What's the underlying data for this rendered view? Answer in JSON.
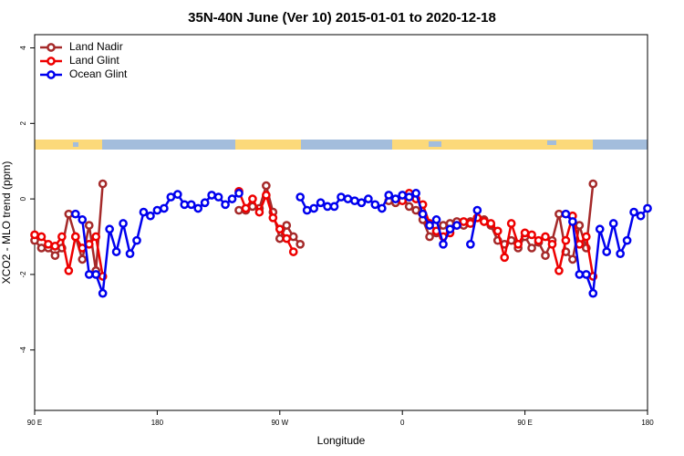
{
  "chart_data": {
    "type": "line",
    "title": "35N-40N June (Ver 10)   2015-01-01 to 2020-12-18",
    "x_label": "Longitude",
    "y_label": "XCO2 - MLO trend (ppm)",
    "xlim": [
      90,
      540
    ],
    "ylim": [
      -5.6,
      4.35
    ],
    "xticks": [
      {
        "value": 90,
        "label": "90 E"
      },
      {
        "value": 180,
        "label": "180"
      },
      {
        "value": 270,
        "label": "90 W"
      },
      {
        "value": 360,
        "label": "0"
      },
      {
        "value": 450,
        "label": "90 E"
      },
      {
        "value": 540,
        "label": "180"
      }
    ],
    "yticks": [
      -4,
      -2,
      0,
      2,
      4
    ],
    "legend": "topleft",
    "x": [
      90,
      95,
      100,
      105,
      110,
      115,
      120,
      125,
      130,
      135,
      140,
      145,
      150,
      155,
      160,
      165,
      170,
      175,
      180,
      185,
      190,
      195,
      200,
      205,
      210,
      215,
      220,
      225,
      230,
      235,
      240,
      245,
      250,
      255,
      260,
      265,
      270,
      275,
      280,
      285,
      290,
      295,
      300,
      305,
      310,
      315,
      320,
      325,
      330,
      335,
      340,
      345,
      350,
      355,
      360,
      365,
      370,
      375,
      380,
      385,
      390,
      395,
      400,
      405,
      410,
      415,
      420,
      425,
      430,
      435,
      440,
      445,
      450,
      455,
      460,
      465,
      470,
      475,
      480,
      485,
      490,
      495,
      500,
      505,
      510,
      515,
      520,
      525,
      530,
      535,
      540
    ],
    "series": [
      {
        "name": "Land Nadir",
        "color": "#a52a2a",
        "values": [
          -1.1,
          -1.3,
          -1.3,
          -1.5,
          -1.3,
          -0.4,
          -1.0,
          -1.6,
          -0.7,
          -1.9,
          0.4,
          null,
          null,
          null,
          null,
          null,
          null,
          null,
          null,
          null,
          null,
          null,
          null,
          null,
          null,
          null,
          null,
          null,
          null,
          null,
          -0.3,
          -0.3,
          -0.2,
          -0.25,
          0.35,
          -0.35,
          -1.05,
          -0.7,
          -1.0,
          -1.2,
          null,
          null,
          null,
          null,
          null,
          null,
          null,
          null,
          null,
          null,
          null,
          null,
          -0.05,
          -0.1,
          0.05,
          -0.2,
          -0.3,
          -0.55,
          -1.0,
          -0.9,
          -0.7,
          -0.65,
          -0.6,
          -0.7,
          -0.6,
          -0.5,
          -0.55,
          -0.7,
          -1.1,
          -1.2,
          -1.1,
          -1.3,
          -1.0,
          -1.3,
          -1.15,
          -1.5,
          -1.1,
          -0.4,
          -1.4,
          -1.6,
          -0.7,
          -1.3,
          0.4,
          null,
          null,
          null,
          null,
          null,
          null,
          null,
          null
        ]
      },
      {
        "name": "Land Glint",
        "color": "#ee0000",
        "values": [
          -0.95,
          -1.0,
          -1.2,
          -1.25,
          -1.0,
          -1.9,
          -1.0,
          -1.3,
          -1.2,
          -1.0,
          -2.05,
          null,
          null,
          null,
          null,
          null,
          null,
          null,
          null,
          null,
          null,
          null,
          null,
          null,
          null,
          null,
          null,
          null,
          null,
          null,
          0.2,
          -0.25,
          0.0,
          -0.35,
          0.1,
          -0.5,
          -0.8,
          -1.05,
          -1.4,
          null,
          null,
          null,
          null,
          null,
          null,
          null,
          null,
          null,
          null,
          null,
          null,
          null,
          null,
          null,
          -0.05,
          0.15,
          0.0,
          -0.15,
          -0.65,
          -0.85,
          -1.0,
          -0.9,
          -0.7,
          -0.6,
          -0.65,
          -0.5,
          -0.6,
          -0.65,
          -0.85,
          -1.55,
          -0.65,
          -1.2,
          -0.9,
          -0.95,
          -1.1,
          -1.0,
          -1.2,
          -1.9,
          -1.1,
          -0.45,
          -1.2,
          -1.0,
          -2.05,
          null,
          null,
          null,
          null,
          null,
          null,
          null,
          null
        ]
      },
      {
        "name": "Ocean Glint",
        "color": "#0000ee",
        "values": [
          null,
          null,
          null,
          null,
          null,
          null,
          -0.4,
          -0.55,
          -2.0,
          -2.0,
          -2.5,
          -0.8,
          -1.4,
          -0.65,
          -1.45,
          -1.1,
          -0.35,
          -0.45,
          -0.3,
          -0.25,
          0.05,
          0.12,
          -0.15,
          -0.15,
          -0.25,
          -0.1,
          0.1,
          0.05,
          -0.15,
          0.0,
          0.15,
          null,
          null,
          null,
          null,
          null,
          null,
          null,
          null,
          0.05,
          -0.3,
          -0.25,
          -0.1,
          -0.2,
          -0.2,
          0.05,
          0.0,
          -0.05,
          -0.1,
          0.0,
          -0.15,
          -0.25,
          0.1,
          0.0,
          0.1,
          0.05,
          0.15,
          -0.4,
          -0.7,
          -0.55,
          -1.2,
          -0.8,
          -0.7,
          null,
          -1.2,
          -0.3,
          null,
          null,
          null,
          null,
          null,
          null,
          null,
          null,
          null,
          null,
          null,
          null,
          -0.4,
          -0.6,
          -2.0,
          -2.0,
          -2.5,
          -0.8,
          -1.4,
          -0.65,
          -1.45,
          -1.1,
          -0.35,
          -0.45,
          -0.25
        ]
      }
    ]
  }
}
